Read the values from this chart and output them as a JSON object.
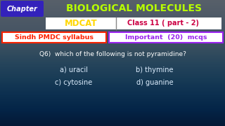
{
  "bg_color": "#020d1a",
  "title_text": "BIOLOGICAL MOLECULES",
  "title_color": "#b8ff00",
  "chapter_box_color": "#3322bb",
  "chapter_text": "Chapter",
  "chapter_text_color": "#ffffff",
  "mdcat_text": "MDCAT",
  "mdcat_color": "#FFD700",
  "mdcat_box_bg": "#ffffff",
  "mdcat_border": "#aaaaaa",
  "class_text": "Class 11 ( part - 2)",
  "class_color": "#cc0044",
  "class_box_bg": "#ffffff",
  "class_border": "#aaaaaa",
  "sindh_text": "Sindh PMDC syllabus",
  "sindh_text_color": "#ff2200",
  "sindh_box_bg": "#ffffff",
  "sindh_border": "#ff2200",
  "important_text": "Important  (20)  mcqs",
  "important_text_color": "#9922ee",
  "important_box_bg": "#ffffff",
  "important_border": "#9922ee",
  "question_text": "Q6)  which of the following is not pyramidine?",
  "question_color": "#ffffff",
  "ans_a": "a) uracil",
  "ans_b": "b) thymine",
  "ans_c": "c) cytosine",
  "ans_d": "d) guanine",
  "ans_color": "#ddeeff"
}
